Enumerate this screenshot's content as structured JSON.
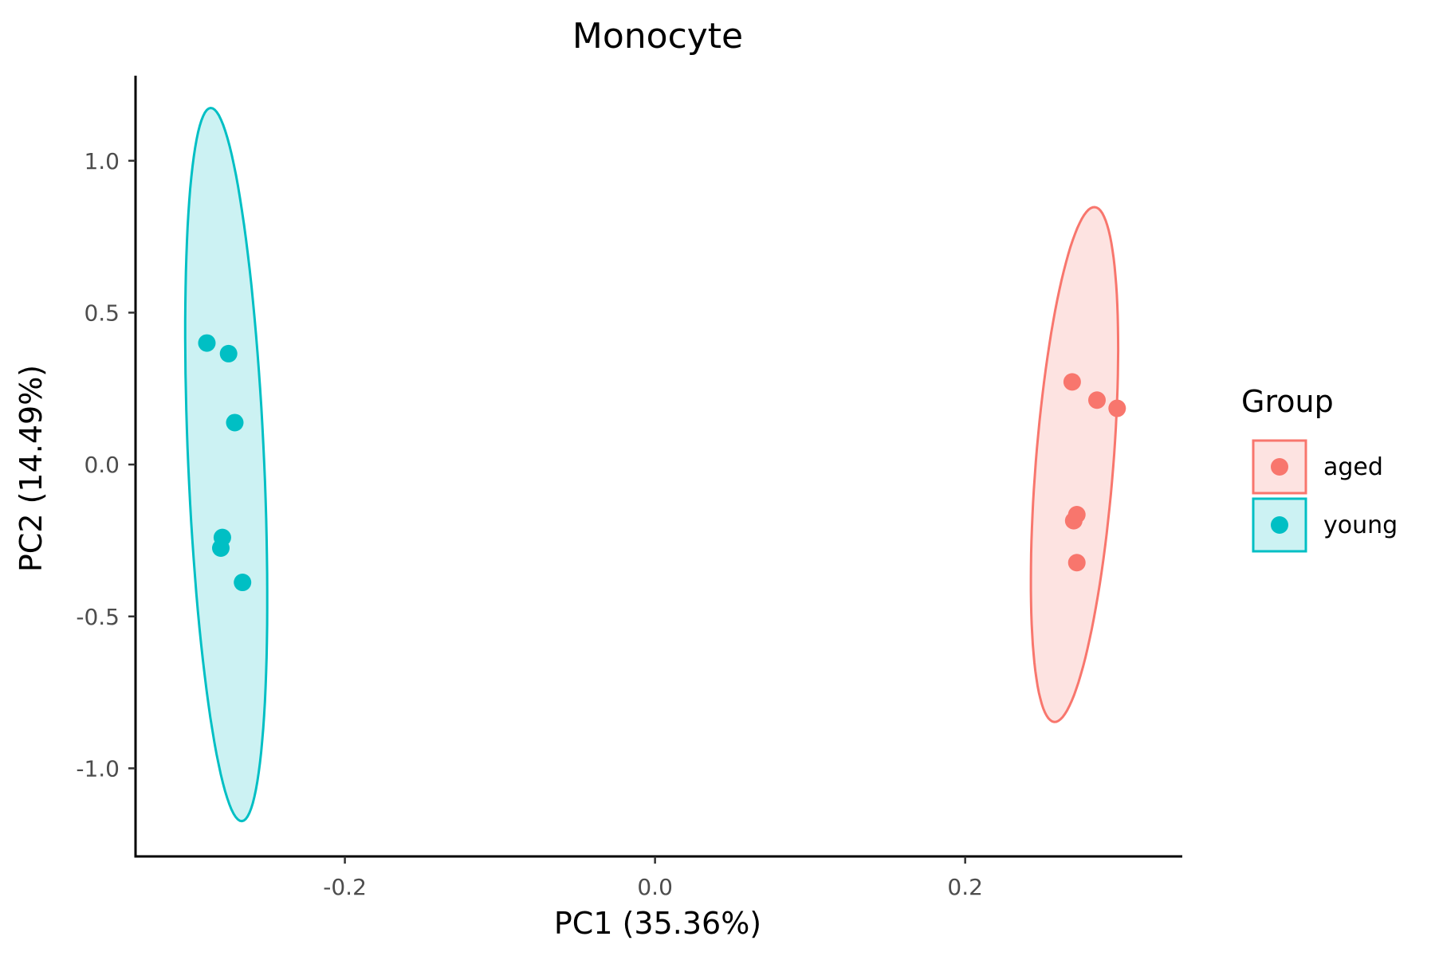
{
  "chart_data": {
    "type": "scatter",
    "title": "Monocyte",
    "xlabel": "PC1 (35.36%)",
    "ylabel": "PC2 (14.49%)",
    "xlim": [
      -0.335,
      0.34
    ],
    "ylim": [
      -1.29,
      1.28
    ],
    "x_ticks": [
      -0.2,
      0.0,
      0.2
    ],
    "x_tick_labels": [
      "-0.2",
      "0.0",
      "0.2"
    ],
    "y_ticks": [
      -1.0,
      -0.5,
      0.0,
      0.5,
      1.0
    ],
    "y_tick_labels": [
      "-1.0",
      "-0.5",
      "0.0",
      "0.5",
      "1.0"
    ],
    "grid": false,
    "legend": {
      "title": "Group",
      "position": "right"
    },
    "series": [
      {
        "name": "aged",
        "color": "#F8766D",
        "fill": "#FDE3E1",
        "points": [
          {
            "x": 0.269,
            "y": 0.272
          },
          {
            "x": 0.285,
            "y": 0.212
          },
          {
            "x": 0.298,
            "y": 0.185
          },
          {
            "x": 0.272,
            "y": -0.165
          },
          {
            "x": 0.27,
            "y": -0.185
          },
          {
            "x": 0.272,
            "y": -0.323
          }
        ],
        "ellipse": {
          "cx": 0.2705,
          "cy": 0.0,
          "half_width": 0.025,
          "half_height": 0.85,
          "angle_deg": 4.5
        }
      },
      {
        "name": "young",
        "color": "#00BFC4",
        "fill": "#CCF2F3",
        "points": [
          {
            "x": -0.289,
            "y": 0.4
          },
          {
            "x": -0.275,
            "y": 0.365
          },
          {
            "x": -0.271,
            "y": 0.138
          },
          {
            "x": -0.279,
            "y": -0.24
          },
          {
            "x": -0.28,
            "y": -0.275
          },
          {
            "x": -0.266,
            "y": -0.388
          }
        ],
        "ellipse": {
          "cx": -0.2765,
          "cy": 0.0,
          "half_width": 0.0245,
          "half_height": 1.175,
          "angle_deg": -2.5
        }
      }
    ]
  }
}
